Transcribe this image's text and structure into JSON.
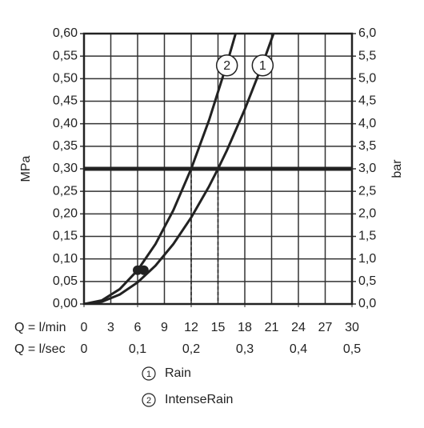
{
  "chart_data": {
    "type": "line",
    "y_label": "MPa",
    "y2_label": "bar",
    "x_label": "Q = l/min",
    "x2_label": "Q = l/sec",
    "xlim": [
      0,
      30
    ],
    "xticks": [
      0,
      3,
      6,
      9,
      12,
      15,
      18,
      21,
      24,
      27,
      30
    ],
    "x2lim": [
      0,
      0.5
    ],
    "x2ticks": [
      0,
      {
        "value": 0.1,
        "label": "0,1"
      },
      {
        "value": 0.2,
        "label": "0,2"
      },
      {
        "value": 0.3,
        "label": "0,3"
      },
      {
        "value": 0.4,
        "label": "0,4"
      },
      {
        "value": 0.5,
        "label": "0,5"
      }
    ],
    "ylim": [
      0,
      0.6
    ],
    "yticks": [
      {
        "value": 0,
        "label": "0,00"
      },
      {
        "value": 0.05,
        "label": "0,05"
      },
      {
        "value": 0.1,
        "label": "0,10"
      },
      {
        "value": 0.15,
        "label": "0,15"
      },
      {
        "value": 0.2,
        "label": "0,20"
      },
      {
        "value": 0.25,
        "label": "0,25"
      },
      {
        "value": 0.3,
        "label": "0,30"
      },
      {
        "value": 0.35,
        "label": "0,35"
      },
      {
        "value": 0.4,
        "label": "0,40"
      },
      {
        "value": 0.45,
        "label": "0,45"
      },
      {
        "value": 0.5,
        "label": "0,50"
      },
      {
        "value": 0.55,
        "label": "0,55"
      },
      {
        "value": 0.6,
        "label": "0,60"
      }
    ],
    "y2lim": [
      0,
      6
    ],
    "y2ticks": [
      {
        "value": 0,
        "label": "0,0"
      },
      {
        "value": 0.5,
        "label": "0,5"
      },
      {
        "value": 1,
        "label": "1,0"
      },
      {
        "value": 1.5,
        "label": "1,5"
      },
      {
        "value": 2,
        "label": "2,0"
      },
      {
        "value": 2.5,
        "label": "2,5"
      },
      {
        "value": 3,
        "label": "3,0"
      },
      {
        "value": 3.5,
        "label": "3,5"
      },
      {
        "value": 4,
        "label": "4,0"
      },
      {
        "value": 4.5,
        "label": "4,5"
      },
      {
        "value": 5,
        "label": "5,0"
      },
      {
        "value": 5.5,
        "label": "5,5"
      },
      {
        "value": 6,
        "label": "6,0"
      }
    ],
    "grid": true,
    "hline": 0.3,
    "series": [
      {
        "name": "Rain",
        "tag": "1",
        "color": "#222222",
        "x": [
          0,
          2,
          4,
          6,
          8,
          10,
          12,
          14,
          15,
          16,
          18,
          20,
          21.2
        ],
        "values": [
          0,
          0.005,
          0.021,
          0.048,
          0.085,
          0.133,
          0.192,
          0.261,
          0.3,
          0.341,
          0.432,
          0.533,
          0.599
        ],
        "marker": {
          "x": 6.7,
          "y": 0.075
        }
      },
      {
        "name": "IntenseRain",
        "tag": "2",
        "color": "#222222",
        "x": [
          0,
          2,
          4,
          6,
          8,
          10,
          12,
          14,
          16,
          17
        ],
        "values": [
          0,
          0.008,
          0.033,
          0.075,
          0.133,
          0.208,
          0.3,
          0.408,
          0.533,
          0.602
        ],
        "marker": {
          "x": 6,
          "y": 0.075
        }
      }
    ]
  }
}
